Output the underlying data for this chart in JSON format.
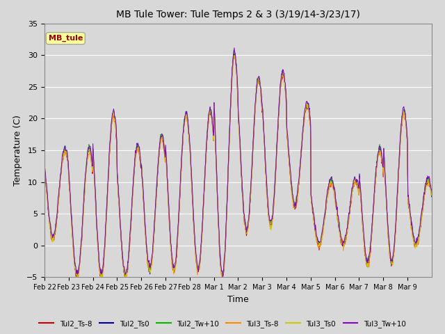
{
  "title": "MB Tule Tower: Tule Temps 2 & 3 (3/19/14-3/23/17)",
  "xlabel": "Time",
  "ylabel": "Temperature (C)",
  "ylim": [
    -5,
    35
  ],
  "annotation_text": "MB_tule",
  "x_tick_labels": [
    "Feb 22",
    "Feb 23",
    "Feb 24",
    "Feb 25",
    "Feb 26",
    "Feb 27",
    "Feb 28",
    "Mar 1",
    "Mar 2",
    "Mar 3",
    "Mar 4",
    "Mar 5",
    "Mar 6",
    "Mar 7",
    "Mar 8",
    "Mar 9"
  ],
  "legend_labels": [
    "Tul2_Ts-8",
    "Tul2_Ts0",
    "Tul2_Tw+10",
    "Tul3_Ts-8",
    "Tul3_Ts0",
    "Tul3_Tw+10"
  ],
  "legend_colors": [
    "#cc0000",
    "#000099",
    "#00bb00",
    "#ff8800",
    "#cccc00",
    "#8800cc"
  ],
  "background_color": "#d8d8d8",
  "plot_bg_color": "#d8d8d8",
  "grid_color": "#ffffff",
  "yticks": [
    -5,
    0,
    5,
    10,
    15,
    20,
    25,
    30,
    35
  ],
  "n_days": 16,
  "n_per_day": 48
}
